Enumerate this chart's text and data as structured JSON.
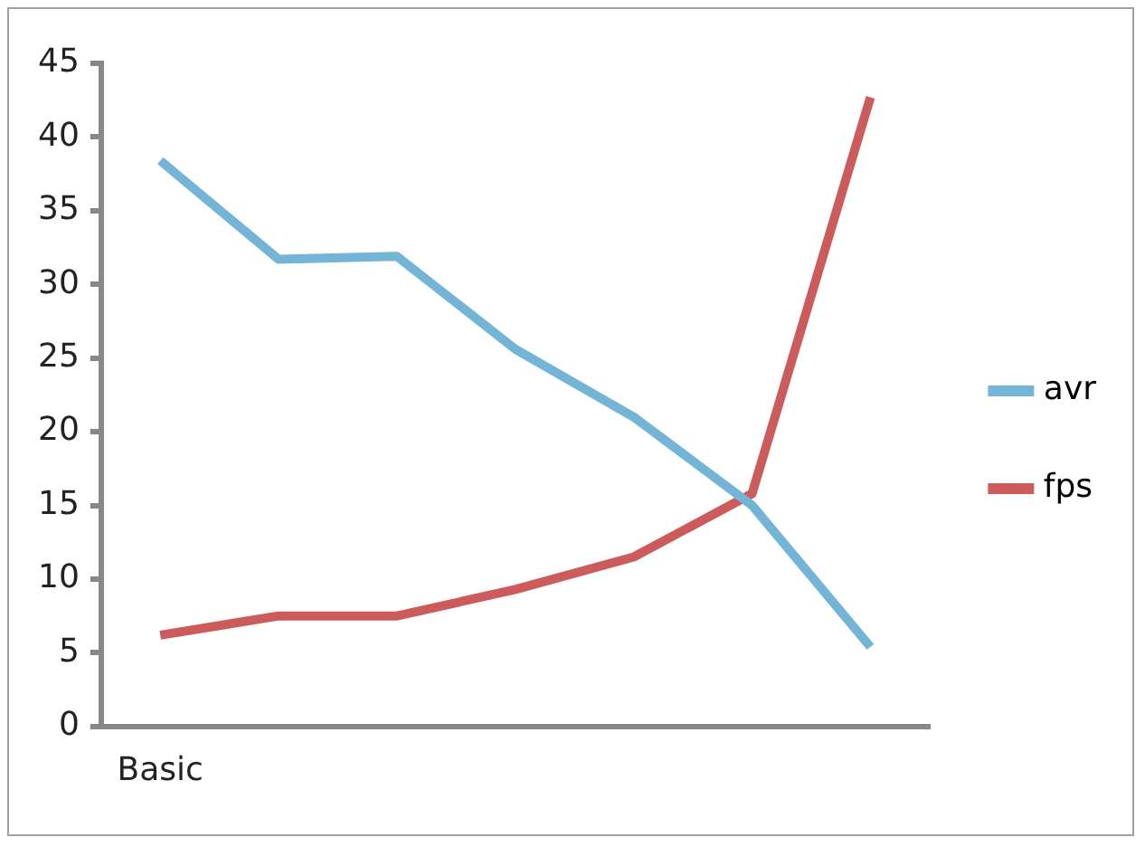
{
  "chart_data": {
    "type": "line",
    "categories": [
      "Basic",
      null,
      null,
      null,
      null,
      null,
      null
    ],
    "series": [
      {
        "name": "avr",
        "color": "#74b4d6",
        "values": [
          38.4,
          31.7,
          31.9,
          25.6,
          21,
          15,
          5.4
        ]
      },
      {
        "name": "fps",
        "color": "#cc5b5b",
        "values": [
          6.2,
          7.5,
          7.5,
          9.3,
          11.5,
          15.8,
          42.7
        ]
      }
    ],
    "ylim": [
      0,
      45
    ],
    "yticks": [
      0,
      5,
      10,
      15,
      20,
      25,
      30,
      35,
      40,
      45
    ],
    "grid": false,
    "legend": "right",
    "marker": "none",
    "line_style": "solid"
  }
}
